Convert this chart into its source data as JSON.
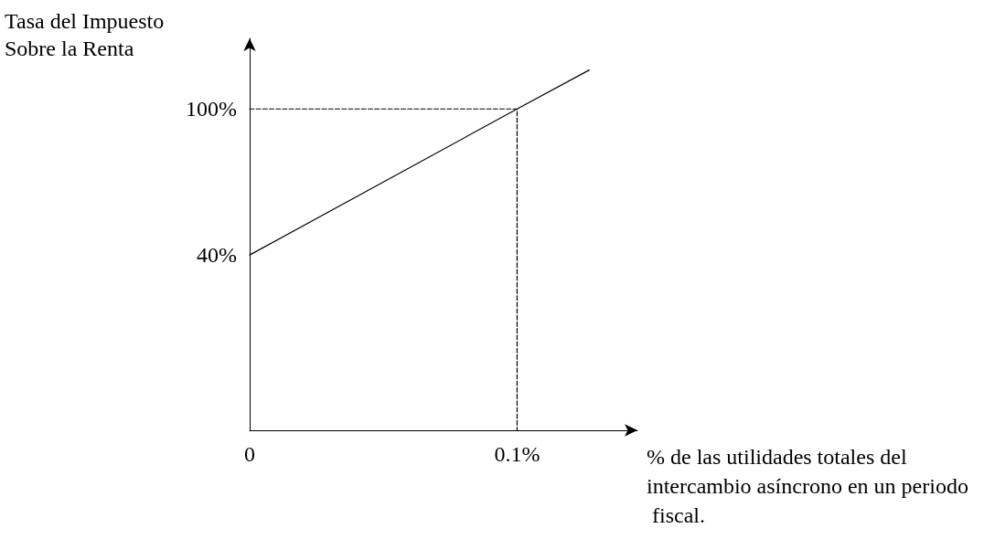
{
  "chart_data": {
    "type": "line",
    "xlabel": "% de las utilidades totales del intercambio asíncrono en un periodo fiscal.",
    "ylabel": "Tasa del Impuesto Sobre la Renta",
    "series": [
      {
        "x": [
          0,
          0.1,
          0.127
        ],
        "values": [
          40,
          100,
          116
        ],
        "color": "#000000",
        "line_style": "solid"
      },
      {
        "x": [
          0,
          0.1,
          0.1
        ],
        "values": [
          100,
          100,
          -32
        ],
        "color": "#000000",
        "line_style": "dashed"
      }
    ],
    "xlim": [
      0,
      0.145
    ],
    "xticks": [
      {
        "value": 0,
        "label": "0"
      },
      {
        "value": 0.1,
        "label": "0.1%"
      }
    ],
    "ylim": [
      -32,
      129
    ],
    "yticks": [
      {
        "value": 40,
        "label": "40%"
      },
      {
        "value": 100,
        "label": "100%"
      }
    ],
    "grid": false,
    "marker": "none"
  }
}
